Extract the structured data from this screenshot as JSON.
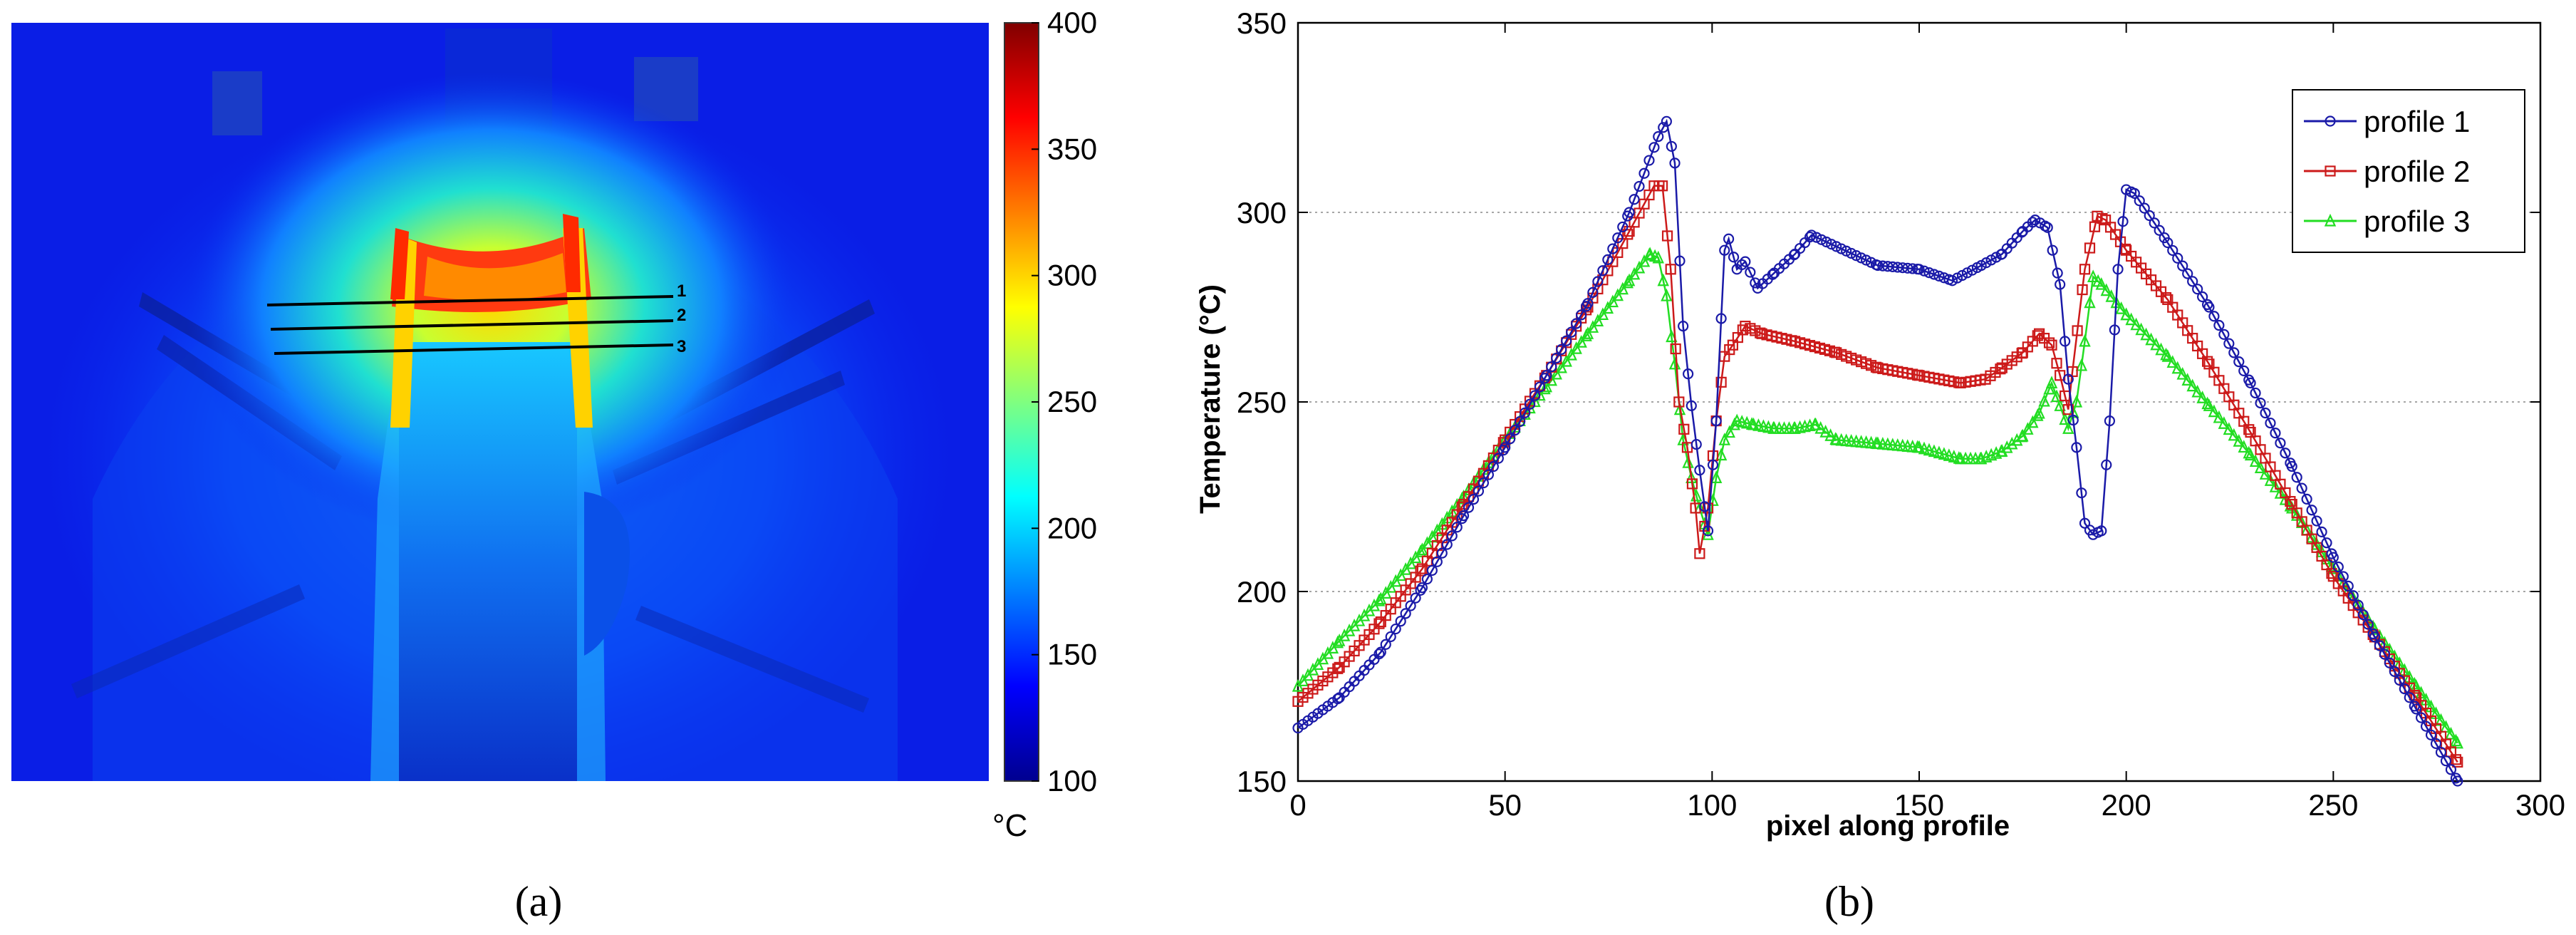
{
  "panels": {
    "a": {
      "label": "(a)"
    },
    "b": {
      "label": "(b)"
    }
  },
  "thermal_image": {
    "colorbar": {
      "min": 100,
      "max": 400,
      "ticks": [
        "400",
        "350",
        "300",
        "250",
        "200",
        "150",
        "100"
      ],
      "unit": "°C",
      "colormap": "jet"
    },
    "profile_line_labels": [
      "1",
      "2",
      "3"
    ]
  },
  "chart_data": {
    "type": "line",
    "xlabel": "pixel along profile",
    "ylabel": "Temperature (°C)",
    "xlim": [
      0,
      300
    ],
    "ylim": [
      150,
      350
    ],
    "xticks": [
      "0",
      "50",
      "100",
      "150",
      "200",
      "250",
      "300"
    ],
    "yticks": [
      "150",
      "200",
      "250",
      "300",
      "350"
    ],
    "grid": "horizontal dotted",
    "legend_position": "top-right",
    "series": [
      {
        "name": "profile 1",
        "color": "#1a1aa8",
        "marker": "circle",
        "points": [
          [
            0,
            164
          ],
          [
            10,
            172
          ],
          [
            20,
            184
          ],
          [
            30,
            201
          ],
          [
            40,
            220
          ],
          [
            50,
            238
          ],
          [
            60,
            257
          ],
          [
            70,
            276
          ],
          [
            80,
            300
          ],
          [
            87,
            320
          ],
          [
            89,
            324
          ],
          [
            91,
            313
          ],
          [
            93,
            270
          ],
          [
            95,
            249
          ],
          [
            97,
            232
          ],
          [
            99,
            216
          ],
          [
            101,
            245
          ],
          [
            103,
            290
          ],
          [
            104,
            293
          ],
          [
            106,
            285
          ],
          [
            108,
            287
          ],
          [
            111,
            280
          ],
          [
            115,
            284
          ],
          [
            120,
            289
          ],
          [
            124,
            294
          ],
          [
            130,
            291
          ],
          [
            140,
            286
          ],
          [
            150,
            285
          ],
          [
            158,
            282
          ],
          [
            165,
            286
          ],
          [
            170,
            289
          ],
          [
            175,
            295
          ],
          [
            178,
            298
          ],
          [
            181,
            296
          ],
          [
            184,
            281
          ],
          [
            186,
            256
          ],
          [
            188,
            238
          ],
          [
            190,
            218
          ],
          [
            192,
            215
          ],
          [
            194,
            216
          ],
          [
            196,
            245
          ],
          [
            198,
            285
          ],
          [
            200,
            306
          ],
          [
            202,
            305
          ],
          [
            210,
            292
          ],
          [
            220,
            275
          ],
          [
            230,
            255
          ],
          [
            240,
            233
          ],
          [
            250,
            209
          ],
          [
            260,
            188
          ],
          [
            270,
            169
          ],
          [
            280,
            150
          ]
        ]
      },
      {
        "name": "profile 2",
        "color": "#cc1a1a",
        "marker": "square",
        "points": [
          [
            0,
            171
          ],
          [
            10,
            180
          ],
          [
            20,
            192
          ],
          [
            30,
            206
          ],
          [
            40,
            223
          ],
          [
            50,
            240
          ],
          [
            60,
            257
          ],
          [
            70,
            275
          ],
          [
            80,
            295
          ],
          [
            86,
            307
          ],
          [
            88,
            307
          ],
          [
            90,
            285
          ],
          [
            92,
            250
          ],
          [
            94,
            238
          ],
          [
            96,
            222
          ],
          [
            97,
            210
          ],
          [
            99,
            222
          ],
          [
            101,
            245
          ],
          [
            103,
            262
          ],
          [
            105,
            265
          ],
          [
            108,
            270
          ],
          [
            112,
            268
          ],
          [
            120,
            266
          ],
          [
            130,
            263
          ],
          [
            140,
            259
          ],
          [
            150,
            257
          ],
          [
            160,
            255
          ],
          [
            166,
            256
          ],
          [
            170,
            259
          ],
          [
            175,
            263
          ],
          [
            179,
            268
          ],
          [
            182,
            265
          ],
          [
            184,
            257
          ],
          [
            186,
            248
          ],
          [
            187,
            258
          ],
          [
            190,
            285
          ],
          [
            193,
            299
          ],
          [
            195,
            298
          ],
          [
            200,
            290
          ],
          [
            210,
            277
          ],
          [
            220,
            260
          ],
          [
            230,
            242
          ],
          [
            240,
            223
          ],
          [
            250,
            204
          ],
          [
            260,
            188
          ],
          [
            270,
            172
          ],
          [
            280,
            155
          ]
        ]
      },
      {
        "name": "profile 3",
        "color": "#22dd22",
        "marker": "triangle",
        "points": [
          [
            0,
            175
          ],
          [
            10,
            187
          ],
          [
            20,
            198
          ],
          [
            30,
            211
          ],
          [
            40,
            225
          ],
          [
            50,
            240
          ],
          [
            60,
            254
          ],
          [
            70,
            268
          ],
          [
            80,
            282
          ],
          [
            85,
            289
          ],
          [
            87,
            288
          ],
          [
            89,
            278
          ],
          [
            91,
            260
          ],
          [
            93,
            240
          ],
          [
            95,
            230
          ],
          [
            97,
            222
          ],
          [
            99,
            215
          ],
          [
            101,
            230
          ],
          [
            103,
            240
          ],
          [
            106,
            245
          ],
          [
            110,
            244
          ],
          [
            115,
            243
          ],
          [
            120,
            243
          ],
          [
            125,
            244
          ],
          [
            130,
            240
          ],
          [
            140,
            239
          ],
          [
            150,
            238
          ],
          [
            160,
            235
          ],
          [
            165,
            235
          ],
          [
            170,
            237
          ],
          [
            175,
            241
          ],
          [
            179,
            247
          ],
          [
            182,
            255
          ],
          [
            184,
            249
          ],
          [
            186,
            243
          ],
          [
            188,
            250
          ],
          [
            190,
            266
          ],
          [
            192,
            283
          ],
          [
            194,
            281
          ],
          [
            200,
            273
          ],
          [
            210,
            262
          ],
          [
            220,
            249
          ],
          [
            230,
            236
          ],
          [
            240,
            222
          ],
          [
            250,
            206
          ],
          [
            260,
            190
          ],
          [
            270,
            175
          ],
          [
            280,
            160
          ]
        ]
      }
    ]
  }
}
